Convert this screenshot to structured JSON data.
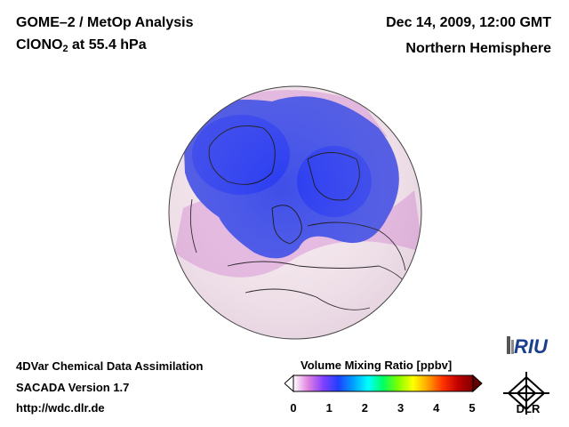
{
  "header": {
    "title_line1": "GOME–2 / MetOp Analysis",
    "species_main": "ClONO",
    "species_sub": "2",
    "species_suffix": " at 55.4 hPa",
    "date": "Dec 14, 2009, 12:00 GMT",
    "region": "Northern Hemisphere"
  },
  "footer": {
    "line1": "4DVar Chemical Data Assimilation",
    "line2": "SACADA Version 1.7",
    "line3": "http://wdc.dlr.de"
  },
  "colorbar": {
    "title": "Volume Mixing Ratio [ppbv]",
    "ticks": [
      "0",
      "1",
      "2",
      "3",
      "4",
      "5"
    ],
    "colors": [
      "#ffffff",
      "#e080e0",
      "#8040ff",
      "#2040ff",
      "#00a0ff",
      "#00ffff",
      "#00ff60",
      "#80ff00",
      "#ffff00",
      "#ffa000",
      "#ff3000",
      "#c00000",
      "#800000"
    ]
  },
  "logos": {
    "riu": "RIU",
    "dlr": "DLR"
  },
  "map": {
    "background_color": "#f6e8ee",
    "low_color": "#e6b8e2",
    "vortex_color": "#3f4ee8",
    "vortex_core_color": "#2a3cf0"
  }
}
